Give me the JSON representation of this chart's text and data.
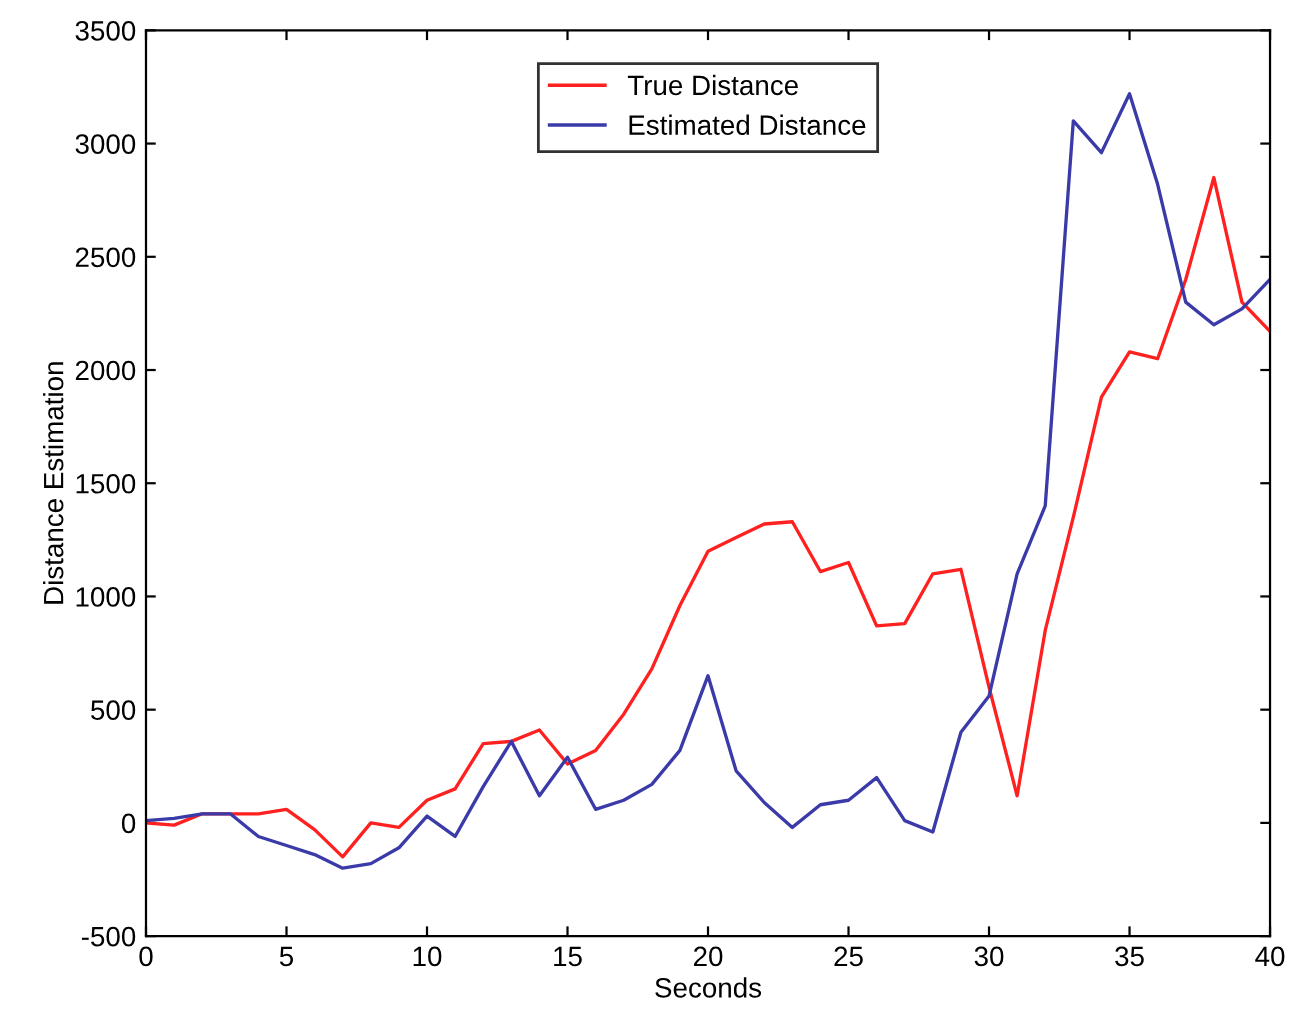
{
  "chart_data": {
    "type": "line",
    "xlabel": "Seconds",
    "ylabel": "Distance Estimation",
    "x": [
      0,
      1,
      2,
      3,
      4,
      5,
      6,
      7,
      8,
      9,
      10,
      11,
      12,
      13,
      14,
      15,
      16,
      17,
      18,
      19,
      20,
      21,
      22,
      23,
      24,
      25,
      26,
      27,
      28,
      29,
      30,
      31,
      32,
      33,
      34,
      35,
      36,
      37,
      38,
      39,
      40
    ],
    "series": [
      {
        "name": "True Distance",
        "color": "#ff2020",
        "values": [
          0,
          -10,
          40,
          40,
          40,
          60,
          -30,
          -150,
          0,
          -20,
          100,
          150,
          350,
          360,
          410,
          260,
          320,
          480,
          680,
          960,
          1200,
          1260,
          1320,
          1330,
          1110,
          1150,
          870,
          880,
          1100,
          1120,
          600,
          120,
          850,
          1350,
          1880,
          2080,
          2050,
          2400,
          2850,
          2300,
          2170
        ]
      },
      {
        "name": "Estimated Distance",
        "color": "#3a3aa8",
        "values": [
          10,
          20,
          40,
          40,
          -60,
          -100,
          -140,
          -200,
          -180,
          -110,
          30,
          -60,
          160,
          360,
          120,
          290,
          60,
          100,
          170,
          320,
          650,
          230,
          90,
          -20,
          80,
          100,
          200,
          10,
          -40,
          400,
          560,
          1100,
          1400,
          3100,
          2960,
          3220,
          2820,
          2300,
          2200,
          2270,
          2400
        ]
      }
    ],
    "xlim": [
      0,
      40
    ],
    "xticks": [
      0,
      5,
      10,
      15,
      20,
      25,
      30,
      35,
      40
    ],
    "ylim": [
      -500,
      3500
    ],
    "yticks": [
      -500,
      0,
      500,
      1000,
      1500,
      2000,
      2500,
      3000,
      3500
    ],
    "grid": false,
    "legend": "top",
    "marker": "none",
    "line_style": "solid"
  }
}
